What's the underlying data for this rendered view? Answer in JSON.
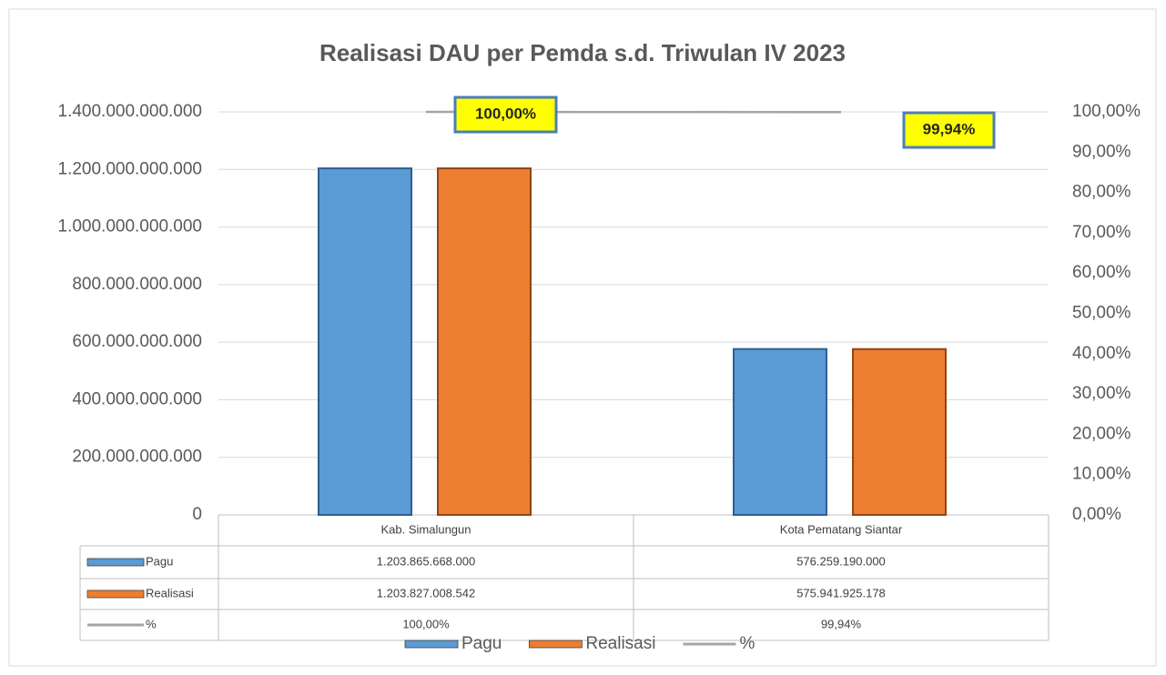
{
  "chart_data": {
    "type": "bar",
    "title": "Realisasi DAU per Pemda s.d. Triwulan IV 2023",
    "categories": [
      "Kab. Simalungun",
      "Kota Pematang Siantar"
    ],
    "series": [
      {
        "name": "Pagu",
        "color": "#5b9bd5",
        "values": [
          1203865668000,
          576259190000
        ],
        "value_labels": [
          "1.203.865.668.000",
          "576.259.190.000"
        ]
      },
      {
        "name": "Realisasi",
        "color": "#ed7d31",
        "values": [
          1203827008542,
          575941925178
        ],
        "value_labels": [
          "1.203.827.008.542",
          "575.941.925.178"
        ]
      },
      {
        "name": "%",
        "type": "line",
        "axis": "y2",
        "color": "#a5a5a5",
        "values": [
          100.0,
          99.94
        ],
        "value_labels": [
          "100,00%",
          "99,94%"
        ]
      }
    ],
    "ylim": [
      0,
      1400000000000
    ],
    "yticks": [
      0,
      {
        "value": 200000000000,
        "label": "200.000.000.000"
      },
      {
        "value": 400000000000,
        "label": "400.000.000.000"
      },
      {
        "value": 600000000000,
        "label": "600.000.000.000"
      },
      {
        "value": 800000000000,
        "label": "800.000.000.000"
      },
      {
        "value": 1000000000000,
        "label": "1.000.000.000.000"
      },
      {
        "value": 1200000000000,
        "label": "1.200.000.000.000"
      },
      {
        "value": 1400000000000,
        "label": "1.400.000.000.000"
      }
    ],
    "y2lim": [
      0,
      100
    ],
    "y2ticks": [
      {
        "value": 0,
        "label": "0,00%"
      },
      {
        "value": 10,
        "label": "10,00%"
      },
      {
        "value": 20,
        "label": "20,00%"
      },
      {
        "value": 30,
        "label": "30,00%"
      },
      {
        "value": 40,
        "label": "40,00%"
      },
      {
        "value": 50,
        "label": "50,00%"
      },
      {
        "value": 60,
        "label": "60,00%"
      },
      {
        "value": 70,
        "label": "70,00%"
      },
      {
        "value": 80,
        "label": "80,00%"
      },
      {
        "value": 90,
        "label": "90,00%"
      },
      {
        "value": 100,
        "label": "100,00%"
      }
    ],
    "grid": true,
    "legend": "bottom"
  }
}
